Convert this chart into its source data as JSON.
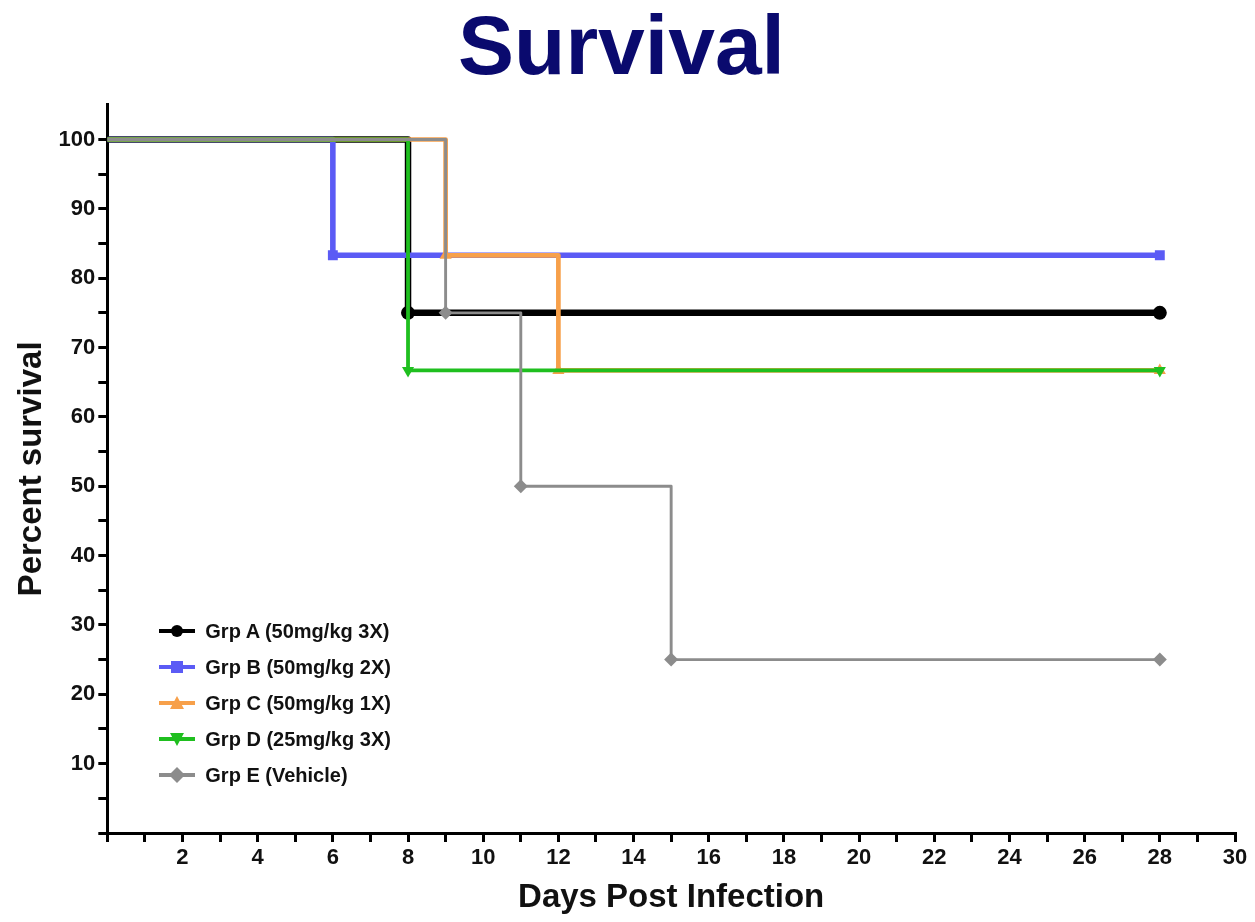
{
  "chart_data": {
    "type": "step",
    "title": "Survival",
    "xlabel": "Days Post Infection",
    "ylabel": "Percent survival",
    "xlim": [
      0,
      30
    ],
    "xticks": [
      {
        "value": 0,
        "label": null
      },
      {
        "value": 1,
        "label": null
      },
      2,
      {
        "value": 3,
        "label": null
      },
      4,
      {
        "value": 5,
        "label": null
      },
      6,
      {
        "value": 7,
        "label": null
      },
      8,
      {
        "value": 9,
        "label": null
      },
      10,
      {
        "value": 11,
        "label": null
      },
      12,
      {
        "value": 13,
        "label": null
      },
      14,
      {
        "value": 15,
        "label": null
      },
      16,
      {
        "value": 17,
        "label": null
      },
      18,
      {
        "value": 19,
        "label": null
      },
      20,
      {
        "value": 21,
        "label": null
      },
      22,
      {
        "value": 23,
        "label": null
      },
      24,
      {
        "value": 25,
        "label": null
      },
      26,
      {
        "value": 27,
        "label": null
      },
      28,
      {
        "value": 29,
        "label": null
      },
      30
    ],
    "ylim": [
      0,
      105
    ],
    "yticks": [
      {
        "value": 0,
        "label": null
      },
      {
        "value": 5,
        "label": null
      },
      10,
      {
        "value": 15,
        "label": null
      },
      20,
      {
        "value": 25,
        "label": null
      },
      30,
      {
        "value": 35,
        "label": null
      },
      40,
      {
        "value": 45,
        "label": null
      },
      50,
      {
        "value": 55,
        "label": null
      },
      60,
      {
        "value": 65,
        "label": null
      },
      70,
      {
        "value": 75,
        "label": null
      },
      80,
      {
        "value": 85,
        "label": null
      },
      90,
      {
        "value": 95,
        "label": null
      },
      100
    ],
    "grid": false,
    "legend": "bottom left",
    "line_style": "solid",
    "series": [
      {
        "name": "Grp A (50mg/kg 3X)",
        "color": "#000000",
        "marker": "circle",
        "x": [
          0,
          8,
          28
        ],
        "values": [
          100,
          75,
          75
        ]
      },
      {
        "name": "Grp B (50mg/kg 2X)",
        "color": "#5b5bf5",
        "marker": "square",
        "x": [
          0,
          6,
          28
        ],
        "values": [
          100,
          83.3,
          83.3
        ]
      },
      {
        "name": "Grp C (50mg/kg 1X)",
        "color": "#f7a04a",
        "marker": "triangle",
        "x": [
          0,
          9,
          12,
          28
        ],
        "values": [
          100,
          83.3,
          66.7,
          66.7
        ]
      },
      {
        "name": "Grp D (25mg/kg 3X)",
        "color": "#1fbf1f",
        "marker": "triangle-down",
        "x": [
          0,
          8,
          28
        ],
        "values": [
          100,
          66.7,
          66.7
        ]
      },
      {
        "name": "Grp E (Vehicle)",
        "color": "#8c8c8c",
        "marker": "diamond",
        "x": [
          0,
          9,
          11,
          15,
          28
        ],
        "values": [
          100,
          75,
          50,
          25,
          25
        ]
      }
    ]
  }
}
